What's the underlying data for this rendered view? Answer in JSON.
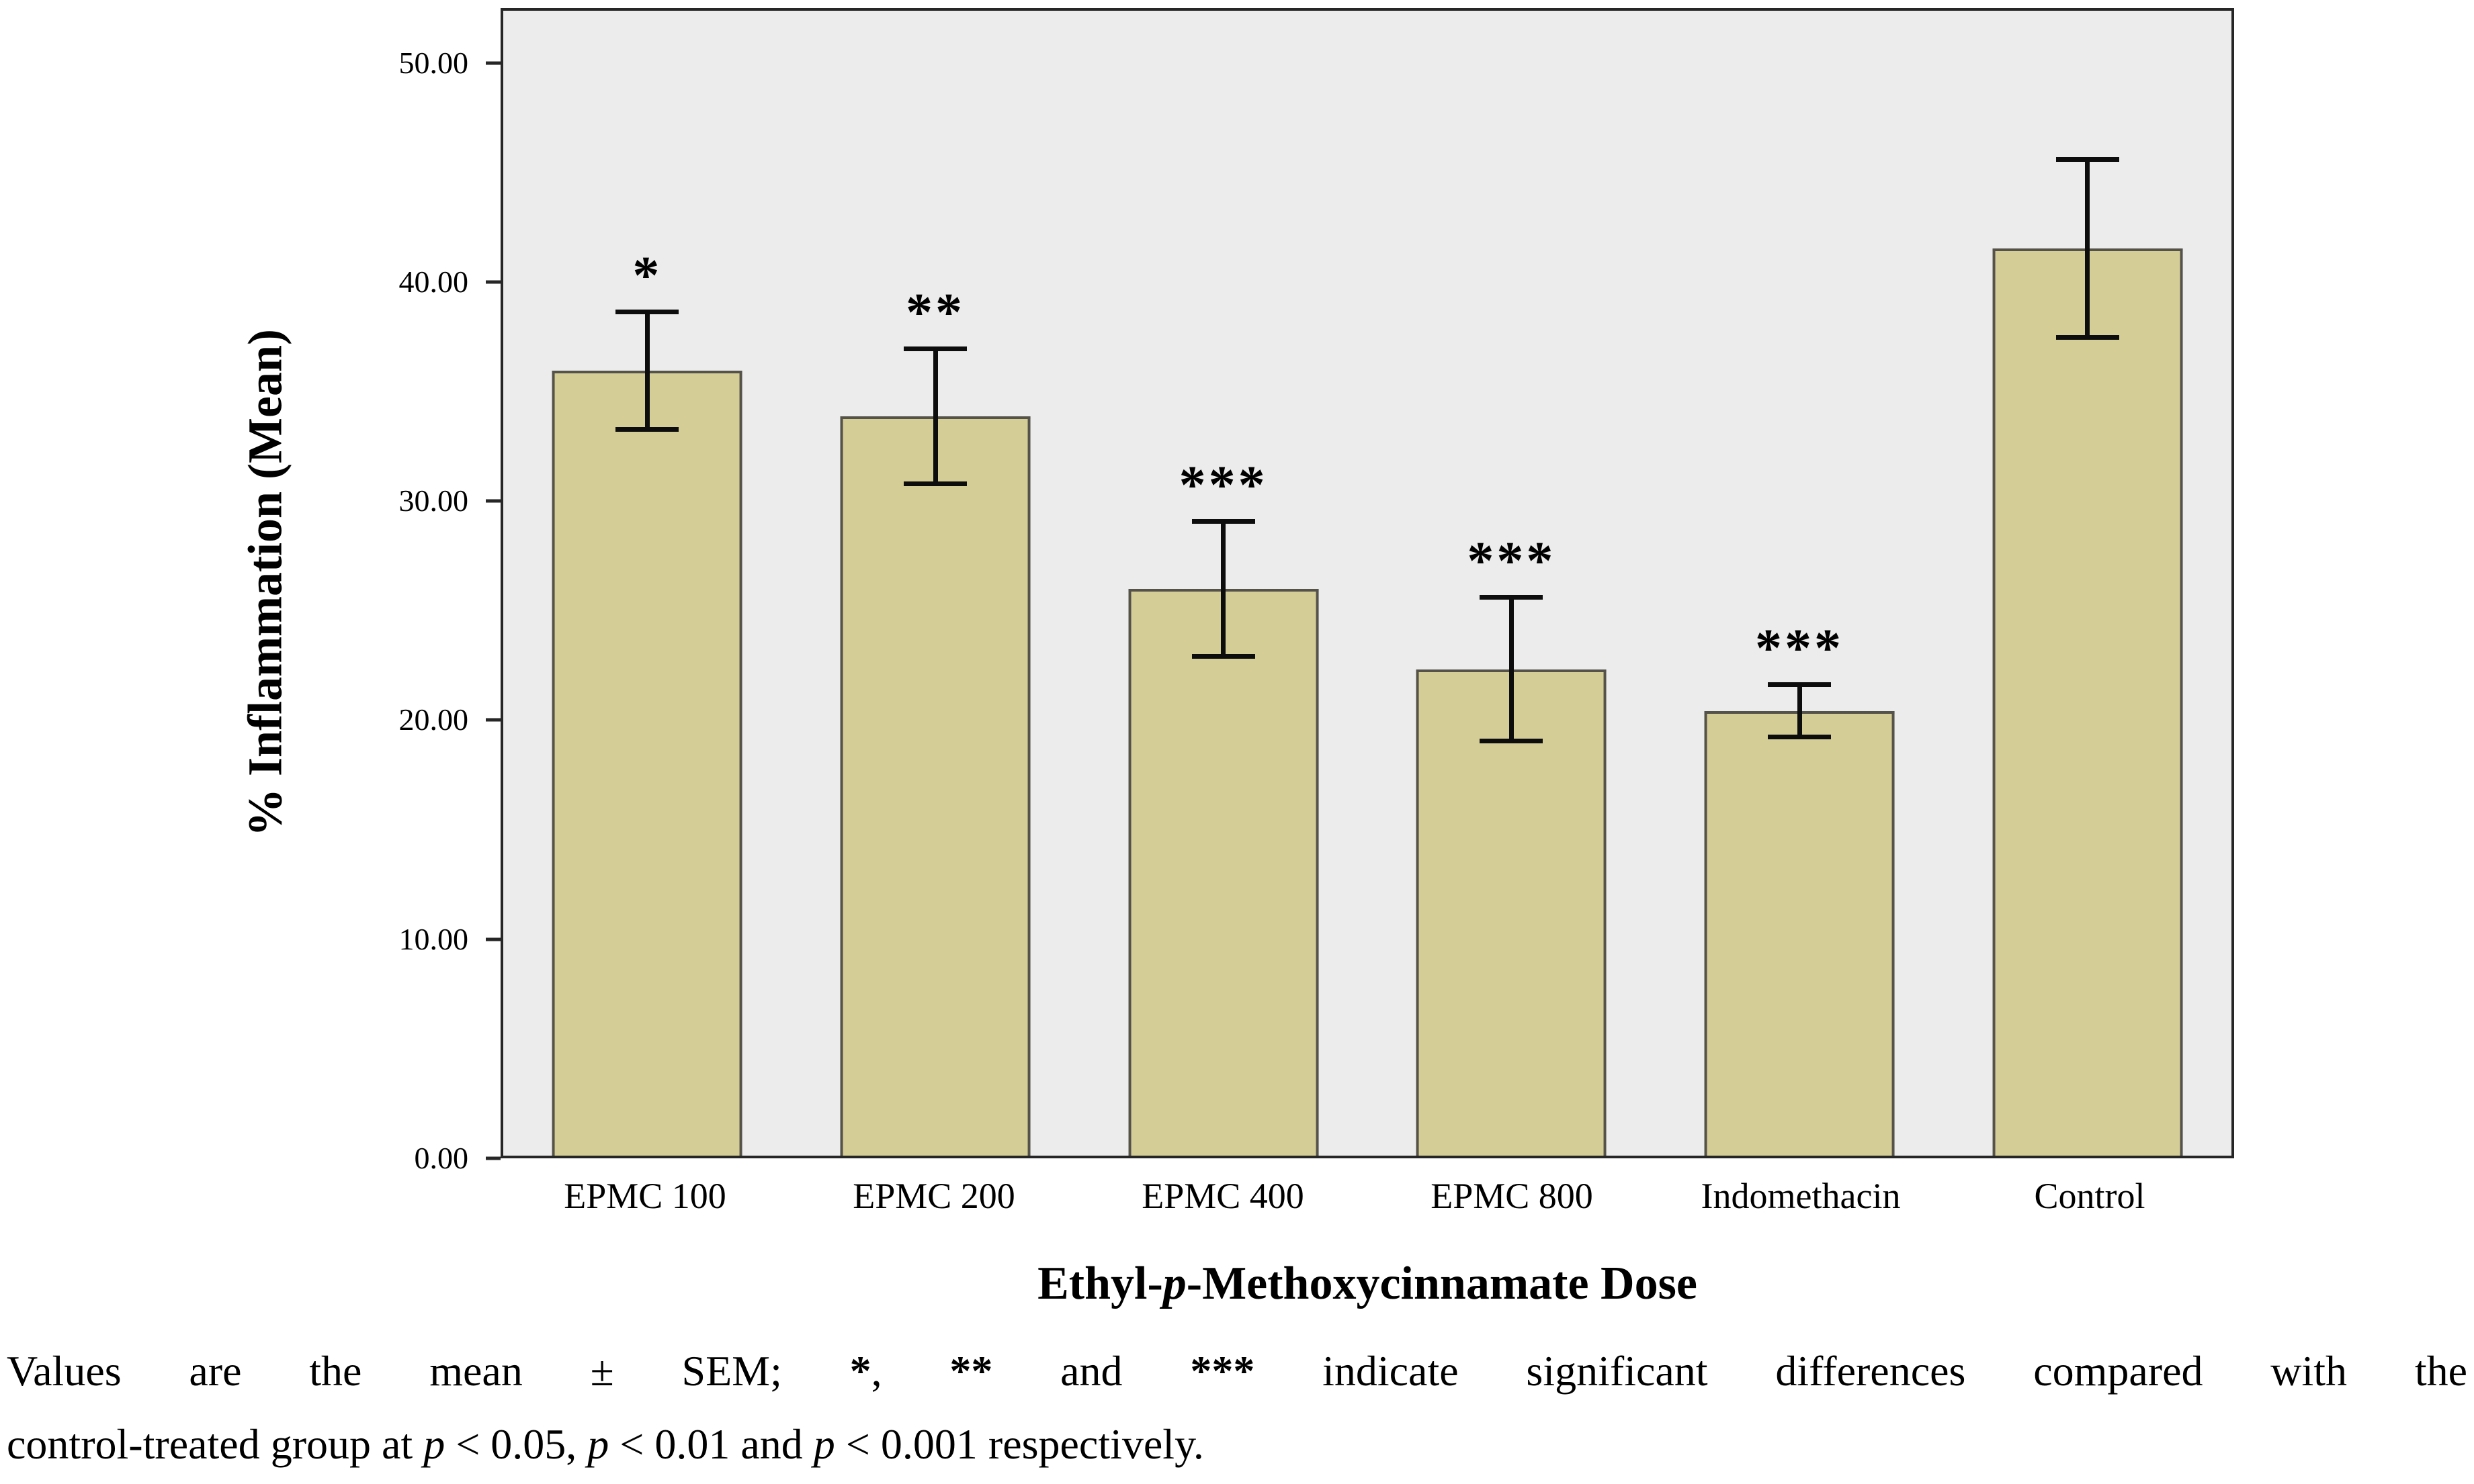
{
  "chart_data": {
    "type": "bar",
    "categories": [
      "EPMC 100",
      "EPMC 200",
      "EPMC 400",
      "EPMC 800",
      "Indomethacin",
      "Control"
    ],
    "values": [
      36.0,
      33.9,
      26.0,
      22.3,
      20.4,
      41.6
    ],
    "errors": [
      2.8,
      3.2,
      3.2,
      3.4,
      1.3,
      4.2
    ],
    "significance": [
      "*",
      "**",
      "***",
      "***",
      "***",
      ""
    ],
    "title": "",
    "xlabel": "Ethyl-p-Methoxycinnamate Dose",
    "xlabel_parts": {
      "pre": "Ethyl-",
      "italic": "p",
      "post": "-Methoxycinnamate Dose"
    },
    "ylabel": "% Inflammation (Mean)",
    "ylim": [
      0,
      52.5
    ],
    "yticks": [
      0,
      10,
      20,
      30,
      40,
      50
    ],
    "ytick_labels": [
      "0.00",
      "10.00",
      "20.00",
      "30.00",
      "40.00",
      "50.00"
    ],
    "grid": false,
    "legend": "none",
    "error_bars": "mean ± SEM",
    "colors": {
      "bar_fill": "#d5cd96",
      "bar_border": "#55524a",
      "plot_background": "#ececec",
      "frame_border": "#262626",
      "error_bar": "#0d0d0d"
    }
  },
  "caption": {
    "line1": {
      "t1": "Values are the mean ± SEM; ",
      "s1": "*",
      "t2": ", ",
      "s2": "**",
      "t3": " and ",
      "s3": "***",
      "t4": " indicate significant differences compared with the"
    },
    "line2": {
      "t1": "control-treated group at ",
      "p1": "p",
      "t2": " < 0.05, ",
      "p2": "p",
      "t3": " < 0.01 and ",
      "p3": "p",
      "t4": " < 0.001 respectively."
    }
  }
}
